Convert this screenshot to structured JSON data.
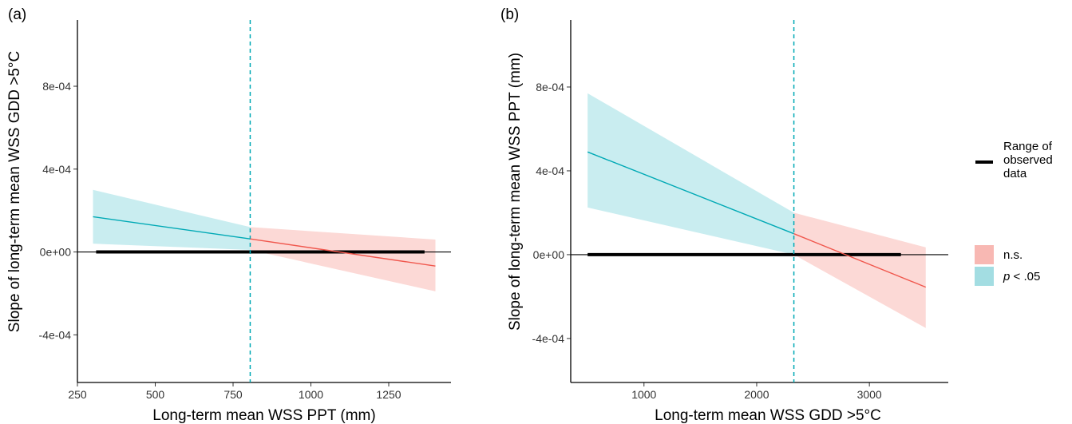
{
  "chart_data": [
    {
      "type": "line",
      "panel_label": "(a)",
      "xlabel": "Long-term mean WSS PPT (mm)",
      "ylabel": "Slope of long-term mean WSS GDD >5°C",
      "xlim": [
        250,
        1450
      ],
      "ylim": [
        -0.00063,
        0.00112
      ],
      "x_ticks": [
        250,
        500,
        750,
        1000,
        1250
      ],
      "x_tick_labels": [
        "250",
        "500",
        "750",
        "1000",
        "1250"
      ],
      "y_ticks": [
        -0.0004,
        0,
        0.0004,
        0.0008
      ],
      "y_tick_labels": [
        "-4e-04",
        "0e+00",
        "4e-04",
        "8e-04"
      ],
      "threshold_x": 805,
      "observed_range": [
        310,
        1365
      ],
      "series": [
        {
          "name": "p < .05",
          "color": "#00A9B5",
          "fill": "#C9EDF0",
          "x": [
            300,
            805
          ],
          "y": [
            0.00017,
            6.3e-05
          ],
          "lower": [
            4e-05,
            1e-05
          ],
          "upper": [
            0.0003,
            0.00012
          ]
        },
        {
          "name": "n.s.",
          "color": "#F0584E",
          "fill": "#FCD9D6",
          "x": [
            805,
            1400
          ],
          "y": [
            6.3e-05,
            -6.8e-05
          ],
          "lower": [
            1e-05,
            -0.00019
          ],
          "upper": [
            0.00012,
            6e-05
          ]
        }
      ]
    },
    {
      "type": "line",
      "panel_label": "(b)",
      "xlabel": "Long-term mean WSS GDD >5°C",
      "ylabel": "Slope of long-term mean WSS PPT (mm)",
      "xlim": [
        350,
        3700
      ],
      "ylim": [
        -0.00061,
        0.00112
      ],
      "x_ticks": [
        1000,
        2000,
        3000
      ],
      "x_tick_labels": [
        "1000",
        "2000",
        "3000"
      ],
      "y_ticks": [
        -0.0004,
        0,
        0.0004,
        0.0008
      ],
      "y_tick_labels": [
        "-4e-04",
        "0e+00",
        "4e-04",
        "8e-04"
      ],
      "threshold_x": 2330,
      "observed_range": [
        500,
        3280
      ],
      "series": [
        {
          "name": "p < .05",
          "color": "#00A9B5",
          "fill": "#C9EDF0",
          "x": [
            500,
            2330
          ],
          "y": [
            0.00049,
            0.0001
          ],
          "lower": [
            0.000225,
            0.0
          ],
          "upper": [
            0.00077,
            0.0002
          ]
        },
        {
          "name": "n.s.",
          "color": "#F0584E",
          "fill": "#FCD9D6",
          "x": [
            2330,
            3500
          ],
          "y": [
            0.0001,
            -0.000155
          ],
          "lower": [
            0.0,
            -0.00035
          ],
          "upper": [
            0.0002,
            3.5e-05
          ]
        }
      ]
    }
  ],
  "legend": {
    "line_item": {
      "label": [
        "Range of",
        "observed",
        "data"
      ],
      "color": "#000000"
    },
    "fill_items": [
      {
        "label": "n.s.",
        "fill": "#F8B8B3"
      },
      {
        "label_italic": "p",
        "label_rest": " < .05",
        "fill": "#A3DDE2"
      }
    ]
  }
}
